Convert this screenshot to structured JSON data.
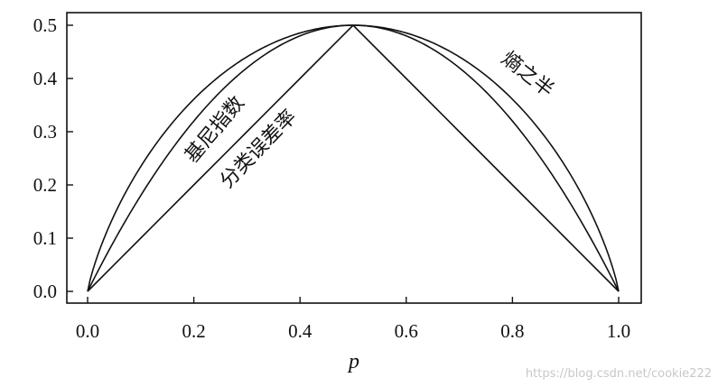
{
  "chart_data": {
    "type": "line",
    "xlabel": "p",
    "ylabel": "",
    "xlim": [
      0.0,
      1.0
    ],
    "ylim": [
      0.0,
      0.5
    ],
    "x_ticks": [
      "0.0",
      "0.2",
      "0.4",
      "0.6",
      "0.8",
      "1.0"
    ],
    "y_ticks": [
      "0.0",
      "0.1",
      "0.2",
      "0.3",
      "0.4",
      "0.5"
    ],
    "x": [
      0.0,
      0.1,
      0.2,
      0.3,
      0.4,
      0.5,
      0.6,
      0.7,
      0.8,
      0.9,
      1.0
    ],
    "series": [
      {
        "name": "熵之半",
        "values": [
          0.0,
          0.234,
          0.361,
          0.441,
          0.485,
          0.5,
          0.485,
          0.441,
          0.361,
          0.234,
          0.0
        ]
      },
      {
        "name": "基尼指数",
        "values": [
          0.0,
          0.18,
          0.32,
          0.42,
          0.48,
          0.5,
          0.48,
          0.42,
          0.32,
          0.18,
          0.0
        ]
      },
      {
        "name": "分类误差率",
        "values": [
          0.0,
          0.1,
          0.2,
          0.3,
          0.4,
          0.5,
          0.4,
          0.3,
          0.2,
          0.1,
          0.0
        ]
      }
    ],
    "annotations": [
      {
        "text": "熵之半",
        "series": "熵之半"
      },
      {
        "text": "基尼指数",
        "series": "基尼指数"
      },
      {
        "text": "分类误差率",
        "series": "分类误差率"
      }
    ],
    "grid": false,
    "legend": "none"
  },
  "watermark": "https://blog.csdn.net/cookie222"
}
